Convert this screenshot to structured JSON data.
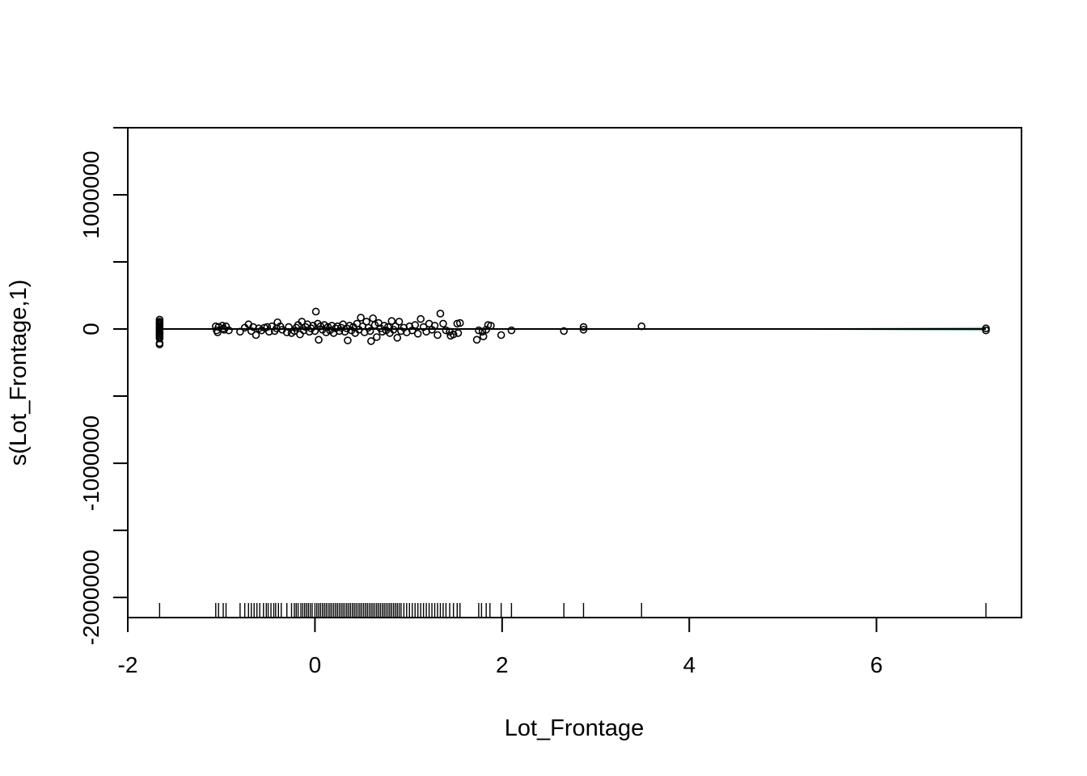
{
  "chart_data": {
    "type": "scatter",
    "title": "",
    "xlabel": "Lot_Frontage",
    "ylabel": "s(Lot_Frontage,1)",
    "xlim": [
      -2,
      7.55
    ],
    "ylim": [
      -2150000,
      1500000
    ],
    "x_ticks": [
      -2,
      0,
      2,
      4,
      6
    ],
    "x_tick_labels": [
      "-2",
      "0",
      "2",
      "4",
      "6"
    ],
    "y_ticks": [
      -2000000,
      -1500000,
      -1000000,
      -500000,
      0,
      500000,
      1000000,
      1500000
    ],
    "y_tick_labels": [
      "-2000000",
      "",
      "-1000000",
      "",
      "0",
      "",
      "1000000",
      ""
    ],
    "smooth_line": {
      "x": [
        -1.66,
        7.17
      ],
      "y": [
        0,
        0
      ]
    },
    "confidence_band": {
      "x": [
        4.5,
        7.17
      ],
      "lower": [
        -2000,
        -15000
      ],
      "upper": [
        2000,
        15000
      ],
      "color": "#a9c7c7"
    },
    "rug_x": [
      -1.66,
      -1.06,
      -1.03,
      -0.98,
      -0.95,
      -0.8,
      -0.75,
      -0.71,
      -0.68,
      -0.65,
      -0.62,
      -0.59,
      -0.55,
      -0.52,
      -0.5,
      -0.47,
      -0.44,
      -0.42,
      -0.39,
      -0.36,
      -0.3,
      -0.25,
      -0.22,
      -0.2,
      -0.18,
      -0.15,
      -0.13,
      -0.11,
      -0.09,
      -0.07,
      -0.05,
      -0.03,
      0.0,
      0.02,
      0.04,
      0.06,
      0.08,
      0.1,
      0.12,
      0.14,
      0.16,
      0.18,
      0.2,
      0.22,
      0.24,
      0.26,
      0.28,
      0.3,
      0.32,
      0.34,
      0.36,
      0.38,
      0.4,
      0.42,
      0.44,
      0.46,
      0.48,
      0.5,
      0.52,
      0.54,
      0.56,
      0.58,
      0.6,
      0.62,
      0.64,
      0.66,
      0.68,
      0.7,
      0.72,
      0.74,
      0.76,
      0.78,
      0.8,
      0.82,
      0.84,
      0.86,
      0.88,
      0.9,
      0.92,
      0.95,
      0.98,
      1.01,
      1.04,
      1.07,
      1.1,
      1.13,
      1.16,
      1.19,
      1.22,
      1.25,
      1.28,
      1.31,
      1.34,
      1.37,
      1.4,
      1.44,
      1.48,
      1.52,
      1.55,
      1.75,
      1.78,
      1.83,
      1.87,
      1.99,
      2.1,
      2.66,
      2.87,
      3.49,
      7.17
    ],
    "points": [
      {
        "x": -1.66,
        "y": 70000
      },
      {
        "x": -1.66,
        "y": 55000
      },
      {
        "x": -1.66,
        "y": 45000
      },
      {
        "x": -1.66,
        "y": 35000
      },
      {
        "x": -1.66,
        "y": 25000
      },
      {
        "x": -1.66,
        "y": 15000
      },
      {
        "x": -1.66,
        "y": 5000
      },
      {
        "x": -1.66,
        "y": -5000
      },
      {
        "x": -1.66,
        "y": -15000
      },
      {
        "x": -1.66,
        "y": -25000
      },
      {
        "x": -1.66,
        "y": -35000
      },
      {
        "x": -1.66,
        "y": -45000
      },
      {
        "x": -1.66,
        "y": -55000
      },
      {
        "x": -1.66,
        "y": -70000
      },
      {
        "x": -1.66,
        "y": -105000
      },
      {
        "x": -1.66,
        "y": -115000
      },
      {
        "x": -1.06,
        "y": 20000
      },
      {
        "x": -1.05,
        "y": -10000
      },
      {
        "x": -1.04,
        "y": -25000
      },
      {
        "x": -1.03,
        "y": 15000
      },
      {
        "x": -0.99,
        "y": 25000
      },
      {
        "x": -0.98,
        "y": 5000
      },
      {
        "x": -0.97,
        "y": -5000
      },
      {
        "x": -0.95,
        "y": 20000
      },
      {
        "x": -0.92,
        "y": -10000
      },
      {
        "x": -0.8,
        "y": -20000
      },
      {
        "x": -0.75,
        "y": 10000
      },
      {
        "x": -0.71,
        "y": 35000
      },
      {
        "x": -0.68,
        "y": -15000
      },
      {
        "x": -0.66,
        "y": 15000
      },
      {
        "x": -0.63,
        "y": -45000
      },
      {
        "x": -0.6,
        "y": 5000
      },
      {
        "x": -0.57,
        "y": -10000
      },
      {
        "x": -0.54,
        "y": 10000
      },
      {
        "x": -0.51,
        "y": 15000
      },
      {
        "x": -0.49,
        "y": -20000
      },
      {
        "x": -0.46,
        "y": 20000
      },
      {
        "x": -0.43,
        "y": -15000
      },
      {
        "x": -0.41,
        "y": 5000
      },
      {
        "x": -0.4,
        "y": 50000
      },
      {
        "x": -0.37,
        "y": 20000
      },
      {
        "x": -0.35,
        "y": -5000
      },
      {
        "x": -0.3,
        "y": -25000
      },
      {
        "x": -0.28,
        "y": 15000
      },
      {
        "x": -0.25,
        "y": -30000
      },
      {
        "x": -0.22,
        "y": -15000
      },
      {
        "x": -0.2,
        "y": 10000
      },
      {
        "x": -0.18,
        "y": 30000
      },
      {
        "x": -0.16,
        "y": -40000
      },
      {
        "x": -0.14,
        "y": 55000
      },
      {
        "x": -0.12,
        "y": -10000
      },
      {
        "x": -0.1,
        "y": 15000
      },
      {
        "x": -0.08,
        "y": 35000
      },
      {
        "x": -0.06,
        "y": -20000
      },
      {
        "x": -0.04,
        "y": 5000
      },
      {
        "x": -0.02,
        "y": 25000
      },
      {
        "x": 0.0,
        "y": -15000
      },
      {
        "x": 0.01,
        "y": 130000
      },
      {
        "x": 0.03,
        "y": 40000
      },
      {
        "x": 0.04,
        "y": -80000
      },
      {
        "x": 0.06,
        "y": 20000
      },
      {
        "x": 0.08,
        "y": -5000
      },
      {
        "x": 0.1,
        "y": 30000
      },
      {
        "x": 0.12,
        "y": -25000
      },
      {
        "x": 0.14,
        "y": 15000
      },
      {
        "x": 0.16,
        "y": -10000
      },
      {
        "x": 0.18,
        "y": 25000
      },
      {
        "x": 0.2,
        "y": -30000
      },
      {
        "x": 0.22,
        "y": 5000
      },
      {
        "x": 0.24,
        "y": 20000
      },
      {
        "x": 0.26,
        "y": -15000
      },
      {
        "x": 0.28,
        "y": 10000
      },
      {
        "x": 0.3,
        "y": 35000
      },
      {
        "x": 0.32,
        "y": -20000
      },
      {
        "x": 0.34,
        "y": 5000
      },
      {
        "x": 0.35,
        "y": -85000
      },
      {
        "x": 0.37,
        "y": 25000
      },
      {
        "x": 0.39,
        "y": -10000
      },
      {
        "x": 0.41,
        "y": 15000
      },
      {
        "x": 0.43,
        "y": -30000
      },
      {
        "x": 0.45,
        "y": 40000
      },
      {
        "x": 0.47,
        "y": -5000
      },
      {
        "x": 0.49,
        "y": 85000
      },
      {
        "x": 0.51,
        "y": 20000
      },
      {
        "x": 0.53,
        "y": -25000
      },
      {
        "x": 0.55,
        "y": 55000
      },
      {
        "x": 0.57,
        "y": 10000
      },
      {
        "x": 0.59,
        "y": -15000
      },
      {
        "x": 0.6,
        "y": -90000
      },
      {
        "x": 0.62,
        "y": 80000
      },
      {
        "x": 0.64,
        "y": 30000
      },
      {
        "x": 0.66,
        "y": -60000
      },
      {
        "x": 0.68,
        "y": 45000
      },
      {
        "x": 0.7,
        "y": 5000
      },
      {
        "x": 0.72,
        "y": -20000
      },
      {
        "x": 0.74,
        "y": 25000
      },
      {
        "x": 0.76,
        "y": -10000
      },
      {
        "x": 0.78,
        "y": 15000
      },
      {
        "x": 0.8,
        "y": -30000
      },
      {
        "x": 0.82,
        "y": 60000
      },
      {
        "x": 0.84,
        "y": -5000
      },
      {
        "x": 0.86,
        "y": 20000
      },
      {
        "x": 0.88,
        "y": -65000
      },
      {
        "x": 0.9,
        "y": 55000
      },
      {
        "x": 0.92,
        "y": -15000
      },
      {
        "x": 0.95,
        "y": 10000
      },
      {
        "x": 0.98,
        "y": -25000
      },
      {
        "x": 1.01,
        "y": 20000
      },
      {
        "x": 1.04,
        "y": -10000
      },
      {
        "x": 1.07,
        "y": 30000
      },
      {
        "x": 1.1,
        "y": -35000
      },
      {
        "x": 1.13,
        "y": 75000
      },
      {
        "x": 1.16,
        "y": 15000
      },
      {
        "x": 1.19,
        "y": -20000
      },
      {
        "x": 1.22,
        "y": 40000
      },
      {
        "x": 1.25,
        "y": -5000
      },
      {
        "x": 1.28,
        "y": 25000
      },
      {
        "x": 1.31,
        "y": -45000
      },
      {
        "x": 1.34,
        "y": 115000
      },
      {
        "x": 1.37,
        "y": 40000
      },
      {
        "x": 1.4,
        "y": -10000
      },
      {
        "x": 1.44,
        "y": -20000
      },
      {
        "x": 1.48,
        "y": -40000
      },
      {
        "x": 1.52,
        "y": 40000
      },
      {
        "x": 1.55,
        "y": 45000
      },
      {
        "x": 1.53,
        "y": -30000
      },
      {
        "x": 1.45,
        "y": -50000
      },
      {
        "x": 1.73,
        "y": -80000
      },
      {
        "x": 1.75,
        "y": -10000
      },
      {
        "x": 1.79,
        "y": -20000
      },
      {
        "x": 1.8,
        "y": -55000
      },
      {
        "x": 1.83,
        "y": -5000
      },
      {
        "x": 1.85,
        "y": 30000
      },
      {
        "x": 1.88,
        "y": 25000
      },
      {
        "x": 1.99,
        "y": -45000
      },
      {
        "x": 2.1,
        "y": -10000
      },
      {
        "x": 2.66,
        "y": -15000
      },
      {
        "x": 2.87,
        "y": 15000
      },
      {
        "x": 2.87,
        "y": -5000
      },
      {
        "x": 3.49,
        "y": 20000
      },
      {
        "x": 7.17,
        "y": 5000
      },
      {
        "x": 7.17,
        "y": -10000
      }
    ]
  }
}
